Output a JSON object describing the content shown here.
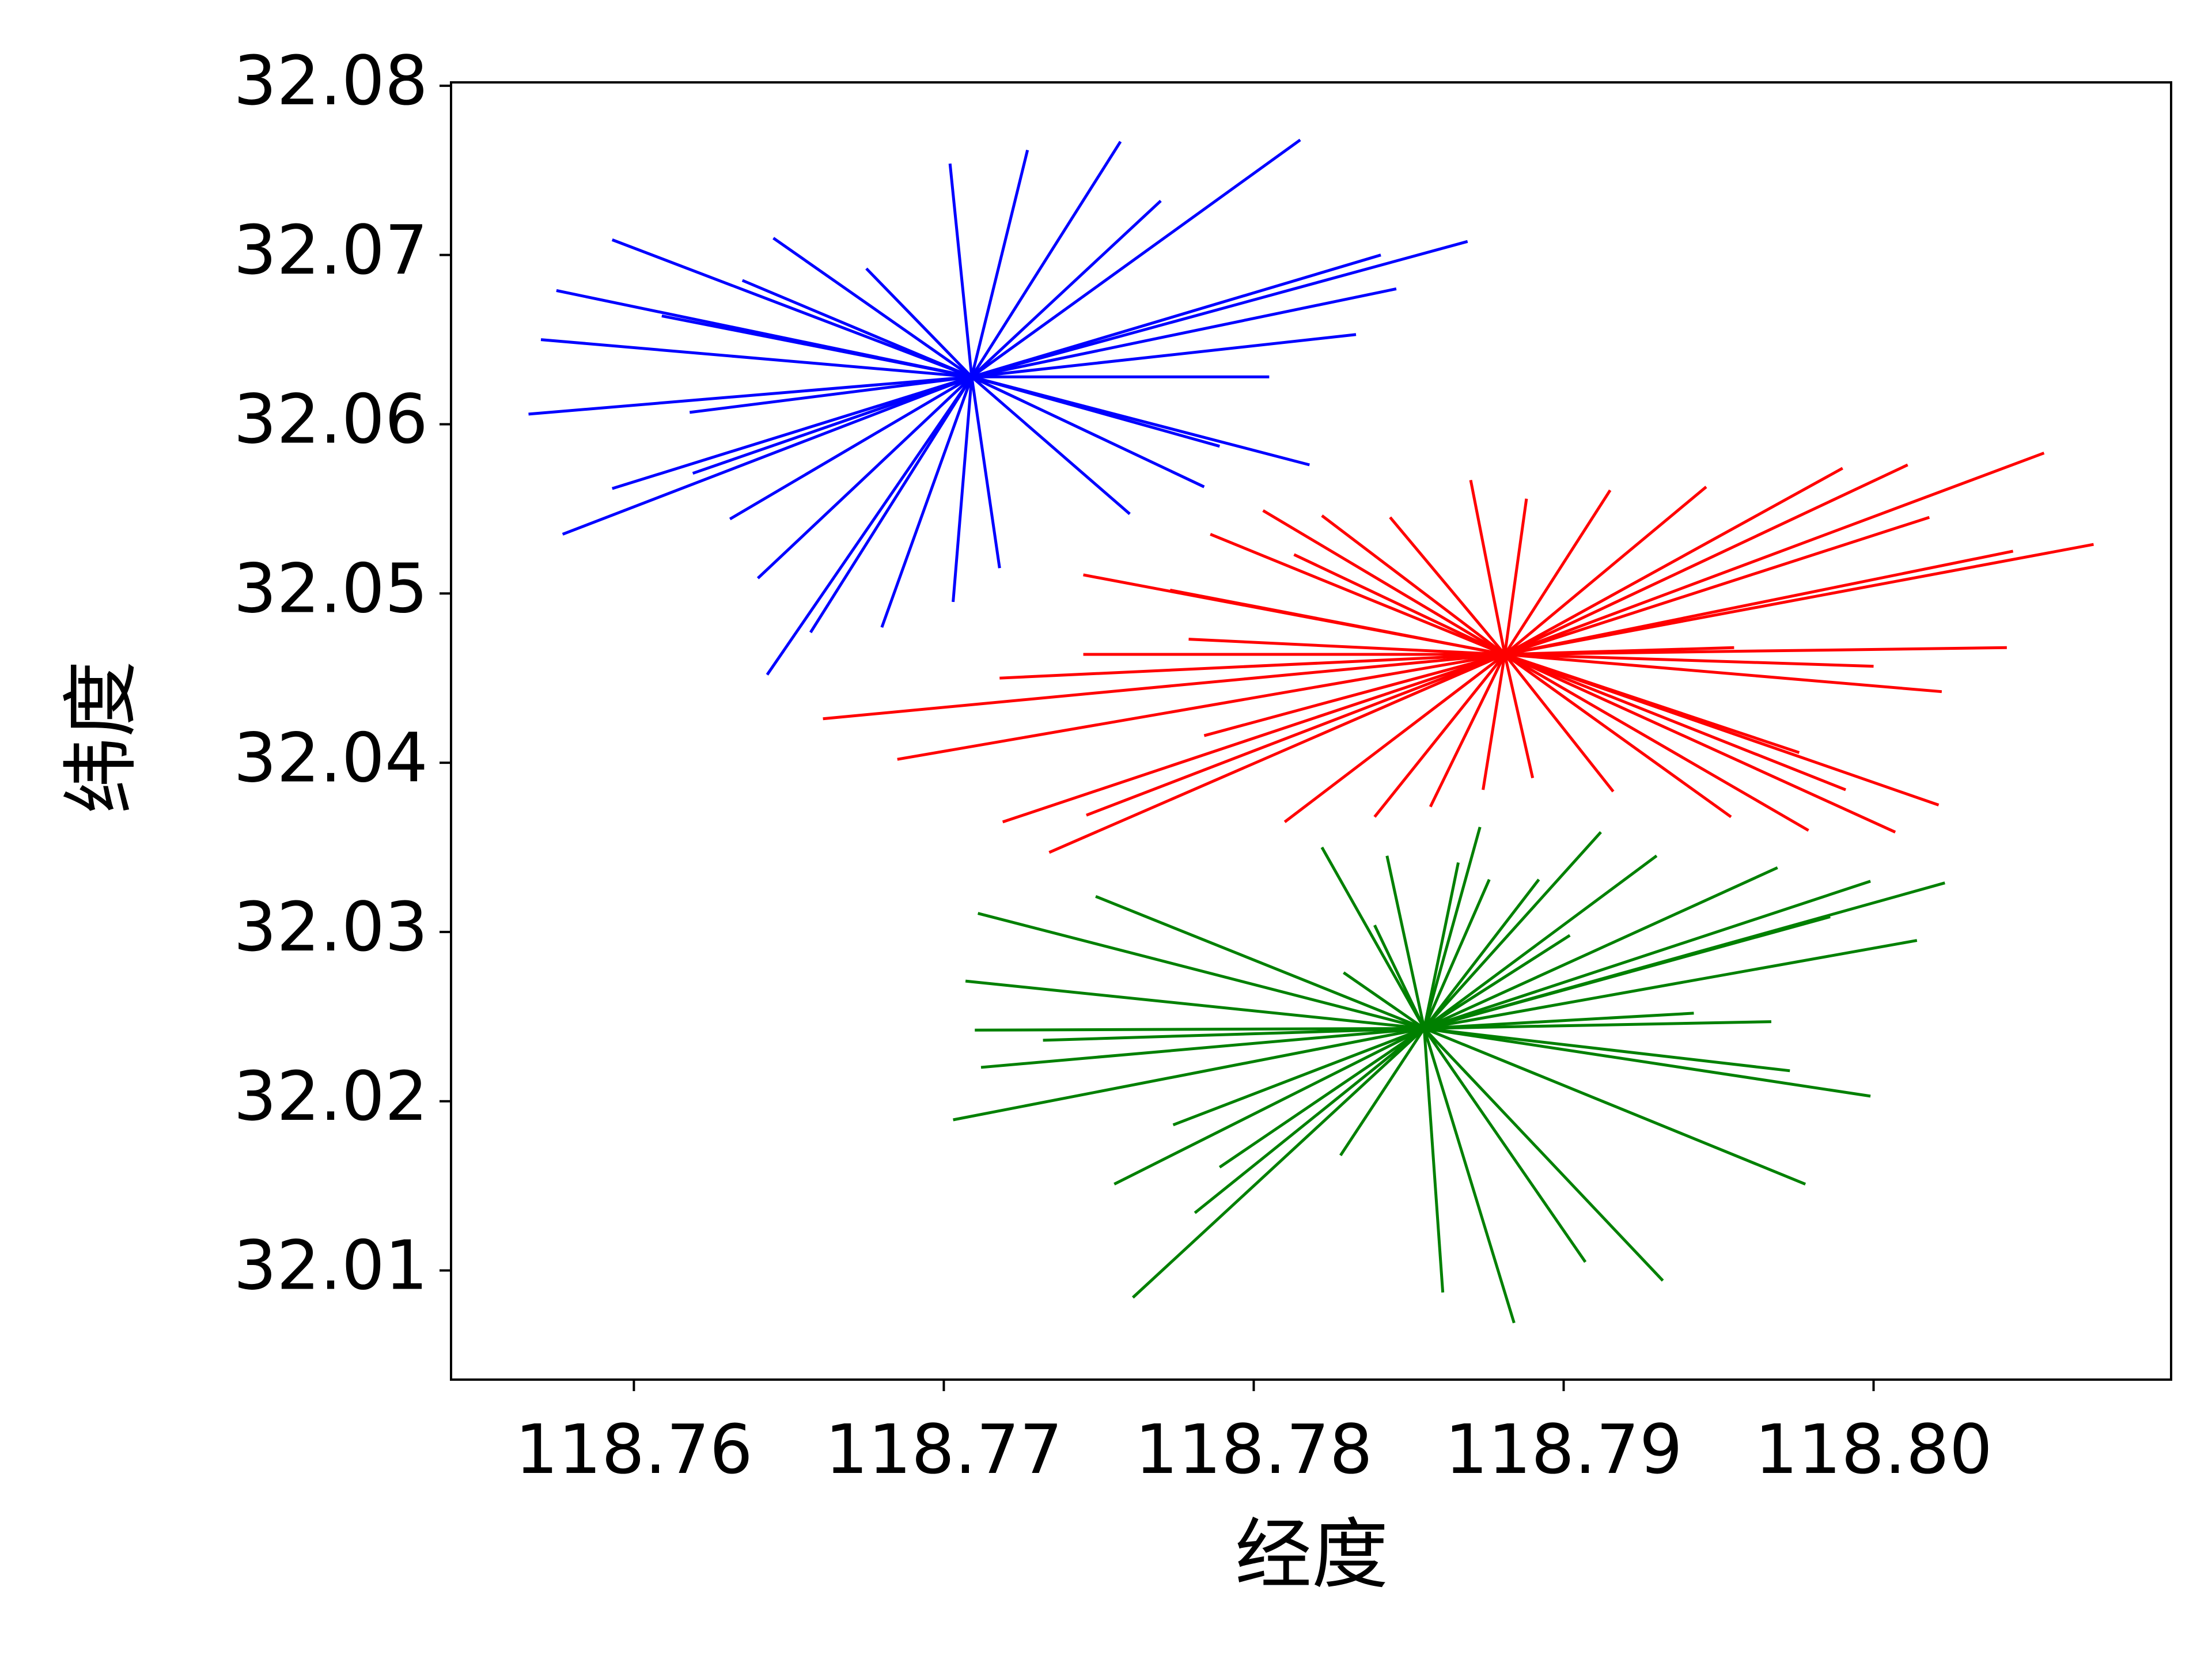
{
  "chart_data": {
    "type": "segments",
    "xlabel": "经度",
    "ylabel": "纬度",
    "xlim": [
      118.7541,
      118.8096
    ],
    "ylim": [
      32.00355,
      32.0802
    ],
    "xticks": [
      118.76,
      118.77,
      118.78,
      118.79,
      {
        "value": 118.8,
        "label": "118.80"
      }
    ],
    "yticks": [
      32.01,
      32.02,
      32.03,
      32.04,
      32.05,
      32.06,
      32.07,
      32.08
    ],
    "series": [
      {
        "color": "#0000ff",
        "x0": 118.7709,
        "y0": 32.0628,
        "x": [
          118.7566,
          118.757,
          118.7575,
          118.7593,
          118.7577,
          118.7593,
          118.7609,
          118.7618,
          118.7631,
          118.764,
          118.7643,
          118.7645,
          118.7657,
          118.7675,
          118.768,
          118.7702,
          118.7718,
          118.7727,
          118.7757,
          118.776,
          118.777,
          118.7784,
          118.7789,
          118.7815,
          118.7818,
          118.7833,
          118.7841,
          118.7846,
          118.7869,
          118.7805,
          118.7703,
          118.7619,
          118.7635
        ],
        "y": [
          32.0606,
          32.065,
          32.0679,
          32.0709,
          32.0535,
          32.0562,
          32.0664,
          32.0607,
          32.0544,
          32.0509,
          32.0452,
          32.071,
          32.0477,
          32.0692,
          32.048,
          32.0754,
          32.0515,
          32.0762,
          32.0767,
          32.0547,
          32.0732,
          32.0563,
          32.0587,
          32.0768,
          32.0576,
          32.0653,
          32.07,
          32.068,
          32.0708,
          32.0628,
          32.0495,
          32.0571,
          32.0685
        ]
      },
      {
        "color": "#ff0000",
        "x0": 118.7881,
        "y0": 32.0464,
        "x": [
          118.7661,
          118.7685,
          118.7719,
          118.7734,
          118.7745,
          118.7745,
          118.7718,
          118.7779,
          118.7786,
          118.7803,
          118.781,
          118.7822,
          118.7813,
          118.7839,
          118.7844,
          118.7857,
          118.787,
          118.7874,
          118.7888,
          118.789,
          118.7915,
          118.7916,
          118.7946,
          118.7954,
          118.7979,
          118.799,
          118.8007,
          118.8011,
          118.8021,
          118.8018,
          118.8055,
          118.8045,
          118.8071,
          118.8043,
          118.8022,
          118.8,
          118.7991,
          118.7976,
          118.7955,
          118.7746,
          118.7784,
          118.7773
        ],
        "y": [
          32.0426,
          32.0402,
          32.0365,
          32.0347,
          32.0511,
          32.0464,
          32.045,
          32.0473,
          32.0535,
          32.0549,
          32.0365,
          32.0546,
          32.0523,
          32.0368,
          32.0545,
          32.0374,
          32.0567,
          32.0384,
          32.0556,
          32.0391,
          32.0561,
          32.0383,
          32.0563,
          32.0368,
          32.036,
          32.0574,
          32.0359,
          32.0576,
          32.0375,
          32.0545,
          32.0583,
          32.0525,
          32.0529,
          32.0468,
          32.0442,
          32.0457,
          32.0384,
          32.0406,
          32.0468,
          32.0369,
          32.0416,
          32.0502
        ]
      },
      {
        "color": "#008000",
        "x0": 118.7855,
        "y0": 32.0243,
        "x": [
          118.7703,
          118.7711,
          118.7707,
          118.771,
          118.7712,
          118.7732,
          118.7749,
          118.7755,
          118.7761,
          118.7781,
          118.7789,
          118.7774,
          118.7822,
          118.7828,
          118.7843,
          118.7861,
          118.7873,
          118.7866,
          118.7884,
          118.7907,
          118.7912,
          118.7932,
          118.793,
          118.7969,
          118.7978,
          118.7999,
          118.7973,
          118.7967,
          118.8014,
          118.8023,
          118.7999,
          118.7986,
          118.7942,
          118.7876,
          118.7902,
          118.7892,
          118.7829,
          118.7839
        ],
        "y": [
          32.0189,
          32.0311,
          32.0271,
          32.0242,
          32.022,
          32.0236,
          32.0321,
          32.0151,
          32.0084,
          32.0134,
          32.0161,
          32.0186,
          32.035,
          32.0168,
          32.0345,
          32.0087,
          32.0362,
          32.0341,
          32.0069,
          32.0105,
          32.0359,
          32.0094,
          32.0345,
          32.0338,
          32.0151,
          32.0203,
          32.0218,
          32.0247,
          32.0295,
          32.0329,
          32.033,
          32.0309,
          32.0252,
          32.0331,
          32.0298,
          32.0331,
          32.0276,
          32.0304
        ]
      }
    ]
  }
}
